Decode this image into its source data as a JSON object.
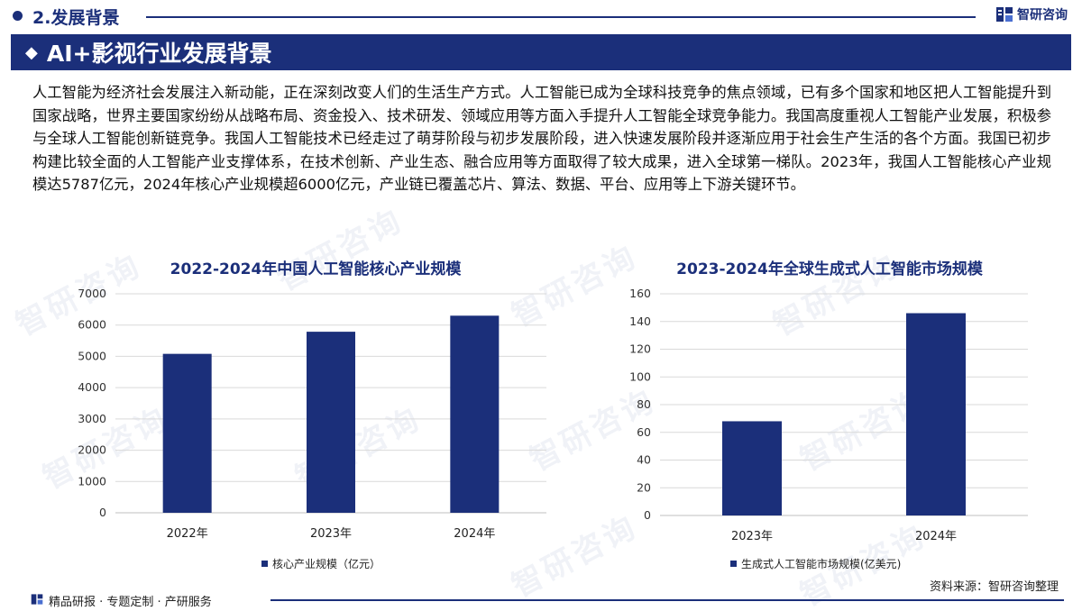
{
  "header": {
    "section_title": "2.发展背景",
    "brand_name": "智研咨询"
  },
  "banner": {
    "title": "AI+影视行业发展背景"
  },
  "paragraph": "人工智能为经济社会发展注入新动能，正在深刻改变人们的生活生产方式。人工智能已成为全球科技竞争的焦点领域，已有多个国家和地区把人工智能提升到国家战略，世界主要国家纷纷从战略布局、资金投入、技术研发、领域应用等方面入手提升人工智能全球竞争能力。我国高度重视人工智能产业发展，积极参与全球人工智能创新链竞争。我国人工智能技术已经走过了萌芽阶段与初步发展阶段，进入快速发展阶段并逐渐应用于社会生产生活的各个方面。我国已初步构建比较全面的人工智能产业支撑体系，在技术创新、产业生态、融合应用等方面取得了较大成果，进入全球第一梯队。2023年，我国人工智能核心产业规模达5787亿元，2024年核心产业规模超6000亿元，产业链已覆盖芯片、算法、数据、平台、应用等上下游关键环节。",
  "watermark": "智研咨询",
  "colors": {
    "primary": "#1b2f7a",
    "bar": "#1b2f7a",
    "grid": "#d9d9d9"
  },
  "chart_data": [
    {
      "type": "bar",
      "title": "2022-2024年中国人工智能核心产业规模",
      "categories": [
        "2022年",
        "2023年",
        "2024年"
      ],
      "series": [
        {
          "name": "核心产业规模（亿元）",
          "values": [
            5080,
            5787,
            6300
          ]
        }
      ],
      "ylim": [
        0,
        7000
      ],
      "yticks": [
        0,
        1000,
        2000,
        3000,
        4000,
        5000,
        6000,
        7000
      ],
      "grid": true,
      "legend": "bottom"
    },
    {
      "type": "bar",
      "title": "2023-2024年全球生成式人工智能市场规模",
      "categories": [
        "2023年",
        "2024年"
      ],
      "series": [
        {
          "name": "生成式人工智能市场规模(亿美元)",
          "values": [
            68,
            146
          ]
        }
      ],
      "ylim": [
        0,
        160
      ],
      "yticks": [
        0,
        20,
        40,
        60,
        80,
        100,
        120,
        140,
        160
      ],
      "grid": true,
      "legend": "bottom"
    }
  ],
  "source": "资料来源：智研咨询整理",
  "footer": {
    "text": "精品研报 · 专题定制 · 产研服务"
  }
}
